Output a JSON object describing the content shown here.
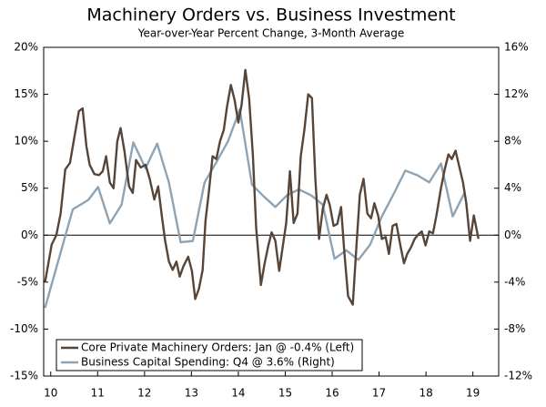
{
  "chart_data": {
    "type": "line",
    "title": "Machinery Orders vs. Business Investment",
    "subtitle": "Year-over-Year Percent Change, 3-Month Average",
    "xlim": [
      9.85,
      19.55
    ],
    "xticks": [
      10,
      11,
      12,
      13,
      14,
      15,
      16,
      17,
      18,
      19
    ],
    "ylim": [
      -15,
      20
    ],
    "yticks": [
      {
        "value": -15,
        "label": "-15%"
      },
      {
        "value": -10,
        "label": "-10%"
      },
      {
        "value": -5,
        "label": "-5%"
      },
      {
        "value": 0,
        "label": "0%"
      },
      {
        "value": 5,
        "label": "5%"
      },
      {
        "value": 10,
        "label": "10%"
      },
      {
        "value": 15,
        "label": "15%"
      },
      {
        "value": 20,
        "label": "20%"
      }
    ],
    "y2lim": [
      -12,
      16
    ],
    "y2ticks": [
      {
        "value": -12,
        "label": "-12%"
      },
      {
        "value": -8,
        "label": "-8%"
      },
      {
        "value": -4,
        "label": "-4%"
      },
      {
        "value": 0,
        "label": "0%"
      },
      {
        "value": 4,
        "label": "4%"
      },
      {
        "value": 8,
        "label": "8%"
      },
      {
        "value": 12,
        "label": "12%"
      },
      {
        "value": 16,
        "label": "16%"
      }
    ],
    "legend": "lower left",
    "series": [
      {
        "name": "Core Private Machinery Orders: Jan @ -0.4% (Left)",
        "color": "#564538",
        "axis": "y",
        "x": [
          9.88,
          10.02,
          10.12,
          10.21,
          10.31,
          10.41,
          10.5,
          10.6,
          10.68,
          10.76,
          10.83,
          10.93,
          11.03,
          11.11,
          11.18,
          11.26,
          11.34,
          11.42,
          11.49,
          11.57,
          11.67,
          11.75,
          11.82,
          11.92,
          12.02,
          12.11,
          12.21,
          12.29,
          12.37,
          12.44,
          12.52,
          12.6,
          12.68,
          12.75,
          12.83,
          12.93,
          13.01,
          13.08,
          13.16,
          13.24,
          13.3,
          13.37,
          13.45,
          13.53,
          13.61,
          13.69,
          13.76,
          13.84,
          13.92,
          14.0,
          14.07,
          14.15,
          14.23,
          14.31,
          14.38,
          14.48,
          14.56,
          14.64,
          14.71,
          14.79,
          14.87,
          14.95,
          15.02,
          15.1,
          15.18,
          15.26,
          15.33,
          15.41,
          15.49,
          15.57,
          15.64,
          15.72,
          15.8,
          15.88,
          15.95,
          16.03,
          16.11,
          16.19,
          16.26,
          16.34,
          16.44,
          16.52,
          16.59,
          16.67,
          16.75,
          16.83,
          16.9,
          16.98,
          17.06,
          17.14,
          17.21,
          17.29,
          17.37,
          17.45,
          17.53,
          17.6,
          17.68,
          17.76,
          17.84,
          17.91,
          17.99,
          18.07,
          18.15,
          18.22,
          18.32,
          18.4,
          18.48,
          18.55,
          18.63,
          18.71,
          18.79,
          18.86,
          18.94,
          19.02,
          19.12
        ],
        "values": [
          -5,
          -1,
          0,
          2.3,
          7,
          7.7,
          10.3,
          13.2,
          13.5,
          9.5,
          7.5,
          6.5,
          6.4,
          6.8,
          8.4,
          5.6,
          5,
          10,
          11.4,
          9,
          5.2,
          4.5,
          8,
          7.2,
          7.5,
          6,
          3.8,
          5.2,
          2,
          -0.6,
          -2.8,
          -3.7,
          -2.8,
          -4.4,
          -3.3,
          -2.3,
          -3.8,
          -6.8,
          -5.7,
          -3.7,
          1.5,
          4.5,
          8.4,
          8.1,
          10,
          11.2,
          13.7,
          16,
          14.4,
          12,
          13.9,
          17.6,
          14.5,
          8.5,
          0.8,
          -5.3,
          -3,
          -1.1,
          0.3,
          -0.6,
          -3.8,
          -1.1,
          1.3,
          6.8,
          1.3,
          2.3,
          8.4,
          11.3,
          15,
          14.6,
          6.1,
          -0.4,
          2.8,
          4.3,
          3.2,
          1,
          1.2,
          3,
          -1.8,
          -6.5,
          -7.4,
          -1,
          4.3,
          6,
          2.3,
          1.8,
          3.4,
          2.1,
          -0.4,
          -0.2,
          -2,
          1,
          1.2,
          -1,
          -3,
          -2,
          -1.3,
          -0.4,
          0.1,
          0.4,
          -1.1,
          0.4,
          0.2,
          2,
          5,
          7,
          8.6,
          8.1,
          9,
          7.3,
          5.6,
          3.4,
          -0.6,
          2.1,
          -0.4
        ]
      },
      {
        "name": "Business Capital Spending: Q4 @ 3.6% (Right)",
        "color": "#8ea4b4",
        "axis": "y2",
        "x": [
          9.88,
          10.14,
          10.47,
          10.8,
          11.01,
          11.26,
          11.51,
          11.76,
          12.02,
          12.27,
          12.52,
          12.77,
          13.03,
          13.28,
          13.53,
          13.78,
          14.03,
          14.29,
          14.54,
          14.79,
          15.04,
          15.29,
          15.55,
          15.8,
          16.05,
          16.3,
          16.56,
          16.81,
          17.06,
          17.31,
          17.56,
          17.82,
          18.07,
          18.32,
          18.57,
          18.82
        ],
        "values": [
          -6.2,
          -2.5,
          2.2,
          3.0,
          4.1,
          1.0,
          2.6,
          7.9,
          5.7,
          7.8,
          4.5,
          -0.6,
          -0.5,
          4.5,
          6.2,
          8,
          10.7,
          4.3,
          3.3,
          2.4,
          3.4,
          3.9,
          3.4,
          2.6,
          -2,
          -1.3,
          -2.1,
          -0.8,
          1.6,
          3.5,
          5.5,
          5.1,
          4.5,
          6.1,
          1.6,
          3.6
        ]
      }
    ]
  }
}
